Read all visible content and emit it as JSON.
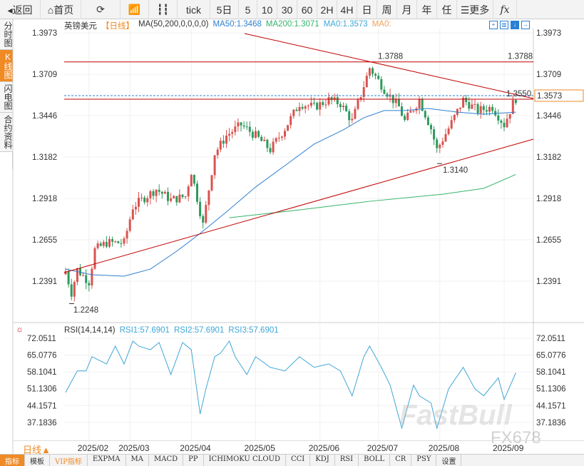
{
  "toolbar": {
    "items": [
      "返回",
      "首页",
      "",
      "",
      "",
      "tick",
      "5日",
      "5",
      "10",
      "30",
      "60",
      "2H",
      "4H",
      "日",
      "周",
      "月",
      "年",
      "任",
      "更多",
      "fx"
    ]
  },
  "left_tabs": [
    "分时图",
    "K线图",
    "闪电图",
    "合约资料"
  ],
  "legend": {
    "symbol": "英镑美元",
    "period": "【日线】",
    "indicator": "MA(50,200,0,0,0,0)",
    "ma50": "MA50:1.3468",
    "ma200": "MA200:1.3071",
    "ma0a": "MA0:1.3573",
    "ma0b": "MA0:"
  },
  "rsi_legend": {
    "name": "RSI(14,14,14)",
    "rsi1": "RSI1:57.6901",
    "rsi2": "RSI2:57.6901",
    "rsi3": "RSI3:57.6901"
  },
  "colors": {
    "up": "#d9534f",
    "down": "#2e9a5c",
    "ma50": "#2f7fd0",
    "ma200": "#34b36b",
    "rsi": "#3fa7d6",
    "trend": "#c00000",
    "accent": "#f08a24"
  },
  "chart_data": {
    "type": "candlestick",
    "price_ticks": [
      "1.3973",
      "1.3709",
      "1.3446",
      "1.3182",
      "1.2918",
      "1.2655",
      "1.2391"
    ],
    "price_tick_values": [
      1.3973,
      1.3709,
      1.3446,
      1.3182,
      1.2918,
      1.2655,
      1.2391
    ],
    "current_price": "1.3573",
    "labels": {
      "high": "1.3788",
      "high_right": "1.3788",
      "level": "1.3550",
      "low_mid": "1.3140",
      "low": "1.2248"
    },
    "level_values": {
      "high": 1.3788,
      "level": 1.355,
      "current": 1.3573,
      "low_mid": 1.314,
      "low": 1.2248
    },
    "close_anchors": [
      [
        0,
        1.2455
      ],
      [
        2,
        1.2318
      ],
      [
        4,
        1.2464
      ],
      [
        8,
        1.2387
      ],
      [
        10,
        1.2591
      ],
      [
        14,
        1.2636
      ],
      [
        20,
        1.2636
      ],
      [
        23,
        1.2864
      ],
      [
        26,
        1.2909
      ],
      [
        31,
        1.2977
      ],
      [
        36,
        1.2909
      ],
      [
        41,
        1.2932
      ],
      [
        43,
        1.309
      ],
      [
        47,
        1.275
      ],
      [
        51,
        1.3205
      ],
      [
        55,
        1.3318
      ],
      [
        60,
        1.3387
      ],
      [
        65,
        1.3318
      ],
      [
        70,
        1.3228
      ],
      [
        75,
        1.3364
      ],
      [
        80,
        1.3523
      ],
      [
        85,
        1.35
      ],
      [
        90,
        1.3546
      ],
      [
        94,
        1.3523
      ],
      [
        98,
        1.341
      ],
      [
        102,
        1.3636
      ],
      [
        104,
        1.375
      ],
      [
        109,
        1.3614
      ],
      [
        114,
        1.35
      ],
      [
        116,
        1.341
      ],
      [
        121,
        1.3546
      ],
      [
        125,
        1.3364
      ],
      [
        127,
        1.3228
      ],
      [
        131,
        1.3364
      ],
      [
        136,
        1.3546
      ],
      [
        141,
        1.3477
      ],
      [
        146,
        1.35
      ],
      [
        150,
        1.3387
      ],
      [
        153,
        1.3523
      ],
      [
        154,
        1.3555
      ]
    ],
    "ma50": [
      [
        0,
        1.2468
      ],
      [
        9,
        1.2432
      ],
      [
        20,
        1.2423
      ],
      [
        29,
        1.2468
      ],
      [
        38,
        1.2582
      ],
      [
        46,
        1.2695
      ],
      [
        55,
        1.2832
      ],
      [
        65,
        1.2991
      ],
      [
        75,
        1.3127
      ],
      [
        85,
        1.3264
      ],
      [
        95,
        1.3355
      ],
      [
        102,
        1.3432
      ],
      [
        109,
        1.3478
      ],
      [
        116,
        1.3478
      ],
      [
        124,
        1.3491
      ],
      [
        134,
        1.3468
      ],
      [
        143,
        1.3455
      ],
      [
        154,
        1.3468
      ]
    ],
    "ma200": [
      [
        56,
        1.2795
      ],
      [
        80,
        1.2845
      ],
      [
        104,
        1.29
      ],
      [
        129,
        1.2945
      ],
      [
        143,
        1.2982
      ],
      [
        154,
        1.3071
      ]
    ],
    "rsi_ticks": [
      "72.0511",
      "65.0776",
      "58.1041",
      "51.1306",
      "44.1571",
      "37.1836"
    ],
    "rsi_tick_values": [
      72.0511,
      65.0776,
      58.1041,
      51.1306,
      44.1571,
      37.1836
    ],
    "rsi": [
      [
        0,
        49.6
      ],
      [
        2,
        54.1
      ],
      [
        4,
        58.5
      ],
      [
        7,
        58.5
      ],
      [
        9,
        64.4
      ],
      [
        14,
        61.4
      ],
      [
        17,
        68.8
      ],
      [
        20,
        61.4
      ],
      [
        23,
        70.9
      ],
      [
        25,
        68.8
      ],
      [
        29,
        67.3
      ],
      [
        32,
        70.3
      ],
      [
        36,
        57
      ],
      [
        40,
        70.3
      ],
      [
        43,
        67.3
      ],
      [
        46,
        40.7
      ],
      [
        48,
        51.1
      ],
      [
        51,
        64.4
      ],
      [
        53,
        65.9
      ],
      [
        56,
        70.9
      ],
      [
        58,
        64.4
      ],
      [
        62,
        57
      ],
      [
        65,
        64.4
      ],
      [
        70,
        60
      ],
      [
        75,
        58.5
      ],
      [
        80,
        64.4
      ],
      [
        85,
        60
      ],
      [
        90,
        61.4
      ],
      [
        94,
        58.5
      ],
      [
        98,
        48.2
      ],
      [
        102,
        64.4
      ],
      [
        104,
        68.8
      ],
      [
        108,
        60
      ],
      [
        111,
        52.6
      ],
      [
        115,
        34.8
      ],
      [
        119,
        52.6
      ],
      [
        121,
        48.2
      ],
      [
        125,
        45.2
      ],
      [
        127,
        34.8
      ],
      [
        131,
        51.1
      ],
      [
        136,
        60
      ],
      [
        140,
        51.1
      ],
      [
        143,
        48.2
      ],
      [
        148,
        55.6
      ],
      [
        150,
        46.7
      ],
      [
        154,
        57.7
      ]
    ],
    "x_ticks": [
      "2025/02",
      "2025/03",
      "2025/04",
      "2025/05",
      "2025/06",
      "2025/07",
      "2025/08",
      "2025/09"
    ],
    "x_tick_days": [
      8,
      22,
      43,
      65,
      87,
      107,
      128,
      150
    ]
  },
  "period_selector": "日线▲",
  "indicator_bar": [
    "指标",
    "模板",
    "VIP指标",
    "EXPMA",
    "MA",
    "MACD",
    "PP",
    "ICHIMOKU CLOUD",
    "CCI",
    "KDJ",
    "RSI",
    "BOLL",
    "CR",
    "PSY",
    "设置"
  ],
  "watermark": "FastBull",
  "watermark2": "FX678"
}
